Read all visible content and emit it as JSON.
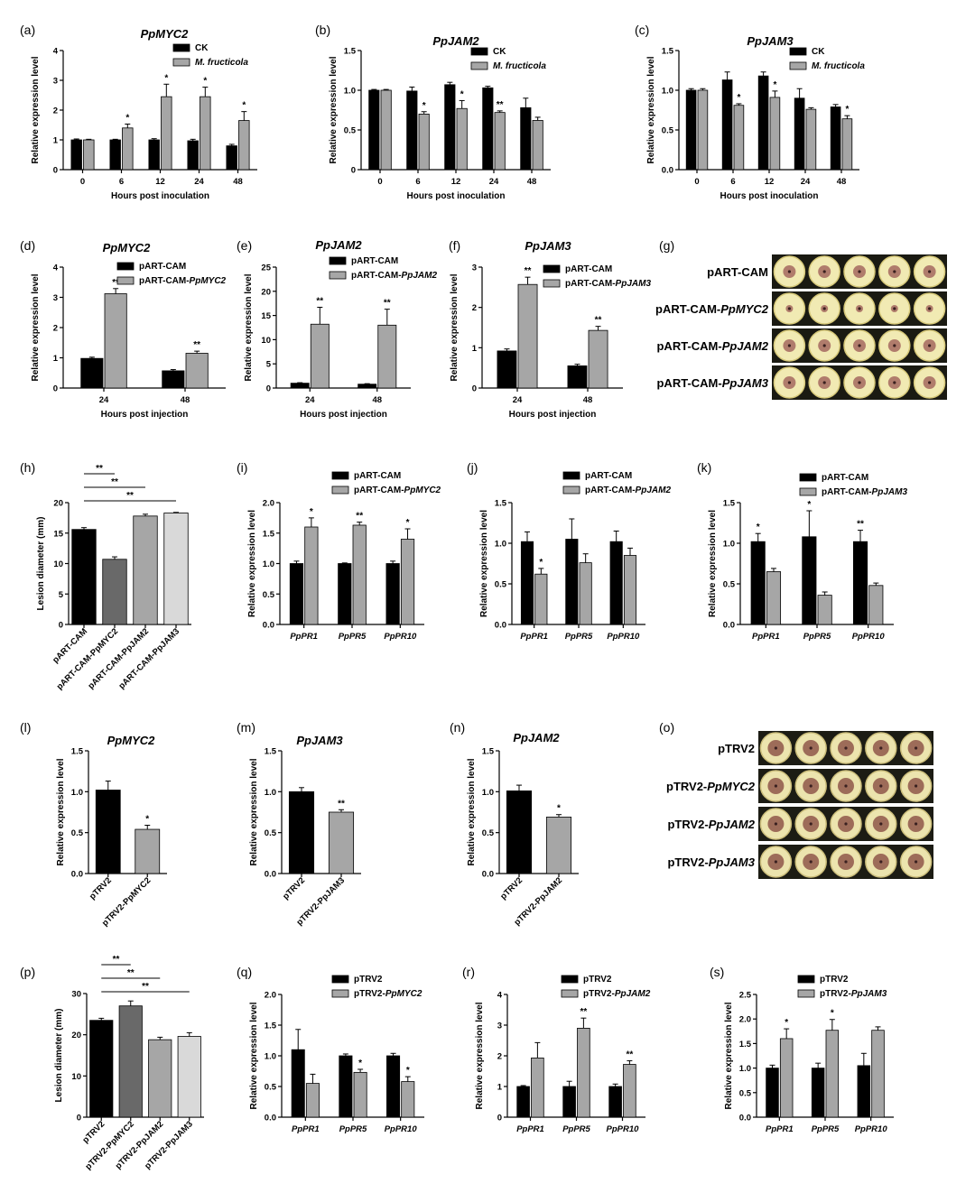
{
  "figure": {
    "panels": [
      {
        "id": "a",
        "label": "(a)",
        "title": "PpMYC2",
        "ylabel": "Relative expression level",
        "xlabel": "Hours post inoculation"
      },
      {
        "id": "b",
        "label": "(b)",
        "title": "PpJAM2",
        "ylabel": "Relative expression level",
        "xlabel": "Hours post inoculation"
      },
      {
        "id": "c",
        "label": "(c)",
        "title": "PpJAM3",
        "ylabel": "Relative expression level",
        "xlabel": "Hours post inoculation"
      },
      {
        "id": "d",
        "label": "(d)",
        "title": "PpMYC2",
        "ylabel": "Relative expression level",
        "xlabel": "Hours post injection"
      },
      {
        "id": "e",
        "label": "(e)",
        "title": "PpJAM2",
        "ylabel": "Relative expression level",
        "xlabel": "Hours post injection"
      },
      {
        "id": "f",
        "label": "(f)",
        "title": "PpJAM3",
        "ylabel": "Relative expression level",
        "xlabel": "Hours post injection"
      },
      {
        "id": "g",
        "label": "(g)",
        "title": "",
        "ylabel": "",
        "xlabel": ""
      },
      {
        "id": "h",
        "label": "(h)",
        "title": "",
        "ylabel": "Lesion diameter (mm)",
        "xlabel": ""
      },
      {
        "id": "i",
        "label": "(i)",
        "title": "",
        "ylabel": "Relative expression level",
        "xlabel": ""
      },
      {
        "id": "j",
        "label": "(j)",
        "title": "",
        "ylabel": "Relative expression level",
        "xlabel": ""
      },
      {
        "id": "k",
        "label": "(k)",
        "title": "",
        "ylabel": "Relative expression level",
        "xlabel": ""
      },
      {
        "id": "l",
        "label": "(l)",
        "title": "PpMYC2",
        "ylabel": "Relative expression level",
        "xlabel": ""
      },
      {
        "id": "m",
        "label": "(m)",
        "title": "PpJAM3",
        "ylabel": "Relative expression level",
        "xlabel": ""
      },
      {
        "id": "n",
        "label": "(n)",
        "title": "PpJAM2",
        "ylabel": "Relative expression level",
        "xlabel": ""
      },
      {
        "id": "o",
        "label": "(o)",
        "title": "",
        "ylabel": "",
        "xlabel": ""
      },
      {
        "id": "p",
        "label": "(p)",
        "title": "",
        "ylabel": "Lesion diameter (mm)",
        "xlabel": ""
      },
      {
        "id": "q",
        "label": "(q)",
        "title": "",
        "ylabel": "Relative expression level",
        "xlabel": ""
      },
      {
        "id": "r",
        "label": "(r)",
        "title": "",
        "ylabel": "Relative expression level",
        "xlabel": ""
      },
      {
        "id": "s",
        "label": "(s)",
        "title": "",
        "ylabel": "Relative expression level",
        "xlabel": ""
      }
    ],
    "photo_panels": [
      {
        "id": "g",
        "rows": [
          "pART-CAM",
          "pART-CAM-PpMYC2",
          "pART-CAM-PpJAM2",
          "pART-CAM-PpJAM3"
        ]
      },
      {
        "id": "o",
        "rows": [
          "pTRV2",
          "pTRV2-PpMYC2",
          "pTRV2-PpJAM2",
          "pTRV2-PpJAM3"
        ]
      }
    ]
  },
  "colors": {
    "black": "#000000",
    "gray": "#a6a6a6",
    "darkgray": "#696969",
    "lightgray": "#d9d9d9"
  },
  "chart_data": [
    {
      "id": "a",
      "type": "bar",
      "ylim": [
        0,
        4
      ],
      "yticks": [
        "0",
        "1",
        "2",
        "3",
        "4"
      ],
      "categories": [
        "0",
        "6",
        "12",
        "24",
        "48"
      ],
      "series": [
        {
          "name": "CK",
          "color": "black",
          "values": [
            1.0,
            1.0,
            1.0,
            0.97,
            0.8
          ],
          "errors": [
            0.03,
            0.02,
            0.04,
            0.05,
            0.05
          ],
          "sig": [
            "",
            "",
            "",
            "",
            ""
          ]
        },
        {
          "name": "M. fructicola",
          "color": "gray",
          "values": [
            1.0,
            1.4,
            2.45,
            2.45,
            1.65
          ],
          "errors": [
            0.02,
            0.13,
            0.42,
            0.32,
            0.3
          ],
          "sig": [
            "",
            "*",
            "*",
            "*",
            "*"
          ]
        }
      ]
    },
    {
      "id": "b",
      "type": "bar",
      "ylim": [
        0,
        1.5
      ],
      "yticks": [
        "0",
        "0.5",
        "1.0",
        "1.5"
      ],
      "categories": [
        "0",
        "6",
        "12",
        "24",
        "48"
      ],
      "series": [
        {
          "name": "CK",
          "color": "black",
          "values": [
            1.0,
            0.99,
            1.07,
            1.03,
            0.78
          ],
          "errors": [
            0.01,
            0.05,
            0.03,
            0.02,
            0.12
          ],
          "sig": [
            "",
            "",
            "",
            "",
            ""
          ]
        },
        {
          "name": "M. fructicola",
          "color": "gray",
          "values": [
            1.0,
            0.7,
            0.77,
            0.72,
            0.62
          ],
          "errors": [
            0.01,
            0.03,
            0.1,
            0.02,
            0.04
          ],
          "sig": [
            "",
            "*",
            "*",
            "**",
            ""
          ]
        }
      ]
    },
    {
      "id": "c",
      "type": "bar",
      "ylim": [
        0,
        1.5
      ],
      "yticks": [
        "0.0",
        "0.5",
        "1.0",
        "1.5"
      ],
      "categories": [
        "0",
        "6",
        "12",
        "24",
        "48"
      ],
      "series": [
        {
          "name": "CK",
          "color": "black",
          "values": [
            1.0,
            1.13,
            1.18,
            0.9,
            0.79
          ],
          "errors": [
            0.02,
            0.1,
            0.05,
            0.12,
            0.03
          ],
          "sig": [
            "",
            "",
            "",
            "",
            ""
          ]
        },
        {
          "name": "M. fructicola",
          "color": "gray",
          "values": [
            1.0,
            0.81,
            0.91,
            0.76,
            0.64
          ],
          "errors": [
            0.02,
            0.02,
            0.08,
            0.02,
            0.04
          ],
          "sig": [
            "",
            "*",
            "*",
            "",
            "*"
          ]
        }
      ]
    },
    {
      "id": "d",
      "type": "bar",
      "ylim": [
        0,
        4
      ],
      "yticks": [
        "0",
        "1",
        "2",
        "3",
        "4"
      ],
      "categories": [
        "24",
        "48"
      ],
      "series": [
        {
          "name": "pART-CAM",
          "color": "black",
          "values": [
            0.98,
            0.57
          ],
          "errors": [
            0.04,
            0.04
          ],
          "sig": [
            "",
            ""
          ]
        },
        {
          "name": "pART-CAM-PpMYC2",
          "color": "gray",
          "values": [
            3.12,
            1.15
          ],
          "errors": [
            0.17,
            0.07
          ],
          "sig": [
            "**",
            "**"
          ]
        }
      ]
    },
    {
      "id": "e",
      "type": "bar",
      "ylim": [
        0,
        25
      ],
      "yticks": [
        "0",
        "5",
        "10",
        "15",
        "20",
        "25"
      ],
      "categories": [
        "24",
        "48"
      ],
      "series": [
        {
          "name": "pART-CAM",
          "color": "black",
          "values": [
            1.0,
            0.8
          ],
          "errors": [
            0.1,
            0.1
          ],
          "sig": [
            "",
            ""
          ]
        },
        {
          "name": "pART-CAM-PpJAM2",
          "color": "gray",
          "values": [
            13.2,
            13.0
          ],
          "errors": [
            3.5,
            3.3
          ],
          "sig": [
            "**",
            "**"
          ]
        }
      ]
    },
    {
      "id": "f",
      "type": "bar",
      "ylim": [
        0,
        3
      ],
      "yticks": [
        "0",
        "1",
        "2",
        "3"
      ],
      "categories": [
        "24",
        "48"
      ],
      "series": [
        {
          "name": "pART-CAM",
          "color": "black",
          "values": [
            0.92,
            0.55
          ],
          "errors": [
            0.05,
            0.04
          ],
          "sig": [
            "",
            ""
          ]
        },
        {
          "name": "pART-CAM-PpJAM3",
          "color": "gray",
          "values": [
            2.57,
            1.43
          ],
          "errors": [
            0.18,
            0.1
          ],
          "sig": [
            "**",
            "**"
          ]
        }
      ]
    },
    {
      "id": "h",
      "type": "bar",
      "ylim": [
        0,
        20
      ],
      "yticks": [
        "0",
        "5",
        "10",
        "15",
        "20"
      ],
      "categories": [
        "pART-CAM",
        "pART-CAM-PpMYC2",
        "pART-CAM-PpJAM2",
        "pART-CAM-PpJAM3"
      ],
      "values": [
        15.6,
        10.7,
        17.8,
        18.3
      ],
      "errors": [
        0.3,
        0.4,
        0.3,
        0.1
      ],
      "colors": [
        "black",
        "darkgray",
        "gray",
        "lightgray"
      ],
      "brackets": [
        {
          "to": 1,
          "label": "**"
        },
        {
          "to": 2,
          "label": "**"
        },
        {
          "to": 3,
          "label": "**"
        }
      ]
    },
    {
      "id": "i",
      "type": "bar",
      "ylim": [
        0,
        2
      ],
      "yticks": [
        "0.0",
        "0.5",
        "1.0",
        "1.5",
        "2.0"
      ],
      "categories": [
        "PpPR1",
        "PpPR5",
        "PpPR10"
      ],
      "series": [
        {
          "name": "pART-CAM",
          "color": "black",
          "values": [
            1.0,
            1.0,
            1.0
          ],
          "errors": [
            0.04,
            0.01,
            0.04
          ],
          "sig": [
            "",
            "",
            ""
          ]
        },
        {
          "name": "pART-CAM-PpMYC2",
          "color": "gray",
          "values": [
            1.6,
            1.63,
            1.4
          ],
          "errors": [
            0.15,
            0.05,
            0.17
          ],
          "sig": [
            "*",
            "**",
            "*"
          ]
        }
      ]
    },
    {
      "id": "j",
      "type": "bar",
      "ylim": [
        0,
        1.5
      ],
      "yticks": [
        "0.0",
        "0.5",
        "1.0",
        "1.5"
      ],
      "categories": [
        "PpPR1",
        "PpPR5",
        "PpPR10"
      ],
      "series": [
        {
          "name": "pART-CAM",
          "color": "black",
          "values": [
            1.02,
            1.05,
            1.02
          ],
          "errors": [
            0.12,
            0.25,
            0.13
          ],
          "sig": [
            "",
            "",
            ""
          ]
        },
        {
          "name": "pART-CAM-PpJAM2",
          "color": "gray",
          "values": [
            0.62,
            0.76,
            0.85
          ],
          "errors": [
            0.07,
            0.11,
            0.09
          ],
          "sig": [
            "*",
            "",
            ""
          ]
        }
      ]
    },
    {
      "id": "k",
      "type": "bar",
      "ylim": [
        0,
        1.5
      ],
      "yticks": [
        "0.0",
        "0.5",
        "1.0",
        "1.5"
      ],
      "categories": [
        "PpPR1",
        "PpPR5",
        "PpPR10"
      ],
      "series": [
        {
          "name": "pART-CAM",
          "color": "black",
          "values": [
            1.02,
            1.08,
            1.02
          ],
          "errors": [
            0.1,
            0.32,
            0.14
          ],
          "sig": [
            "*",
            "*",
            "**"
          ]
        },
        {
          "name": "pART-CAM-PpJAM3",
          "color": "gray",
          "values": [
            0.65,
            0.36,
            0.48
          ],
          "errors": [
            0.04,
            0.04,
            0.03
          ],
          "sig": [
            "",
            "",
            ""
          ]
        }
      ]
    },
    {
      "id": "l",
      "type": "bar",
      "ylim": [
        0,
        1.5
      ],
      "yticks": [
        "0.0",
        "0.5",
        "1.0",
        "1.5"
      ],
      "categories": [
        "pTRV2",
        "pTRV2-PpMYC2"
      ],
      "values": [
        1.02,
        0.54
      ],
      "errors": [
        0.11,
        0.05
      ],
      "colors": [
        "black",
        "gray"
      ],
      "sig": [
        "",
        "*"
      ]
    },
    {
      "id": "m",
      "type": "bar",
      "ylim": [
        0,
        1.5
      ],
      "yticks": [
        "0.0",
        "0.5",
        "1.0",
        "1.5"
      ],
      "categories": [
        "pTRV2",
        "pTRV2-PpJAM3"
      ],
      "values": [
        1.0,
        0.75
      ],
      "errors": [
        0.05,
        0.03
      ],
      "colors": [
        "black",
        "gray"
      ],
      "sig": [
        "",
        "**"
      ]
    },
    {
      "id": "n",
      "type": "bar",
      "ylim": [
        0,
        1.5
      ],
      "yticks": [
        "0.0",
        "0.5",
        "1.0",
        "1.5"
      ],
      "categories": [
        "pTRV2",
        "pTRV2-PpJAM2"
      ],
      "values": [
        1.01,
        0.69
      ],
      "errors": [
        0.07,
        0.03
      ],
      "colors": [
        "black",
        "gray"
      ],
      "sig": [
        "",
        "*"
      ]
    },
    {
      "id": "p",
      "type": "bar",
      "ylim": [
        0,
        30
      ],
      "yticks": [
        "0",
        "10",
        "20",
        "30"
      ],
      "categories": [
        "pTRV2",
        "pTRV2-PpMYC2",
        "pTRV2-PpJAM2",
        "pTRV2-PpJAM3"
      ],
      "values": [
        23.5,
        27.0,
        18.8,
        19.6
      ],
      "errors": [
        0.5,
        1.2,
        0.6,
        0.9
      ],
      "colors": [
        "black",
        "darkgray",
        "gray",
        "lightgray"
      ],
      "brackets": [
        {
          "to": 1,
          "label": "**"
        },
        {
          "to": 2,
          "label": "**"
        },
        {
          "to": 3,
          "label": "**"
        }
      ]
    },
    {
      "id": "q",
      "type": "bar",
      "ylim": [
        0,
        2
      ],
      "yticks": [
        "0.0",
        "0.5",
        "1.0",
        "1.5",
        "2.0"
      ],
      "categories": [
        "PpPR1",
        "PpPR5",
        "PpPR10"
      ],
      "series": [
        {
          "name": "pTRV2",
          "color": "black",
          "values": [
            1.1,
            1.0,
            1.0
          ],
          "errors": [
            0.33,
            0.03,
            0.04
          ],
          "sig": [
            "",
            "",
            ""
          ]
        },
        {
          "name": "pTRV2-PpMYC2",
          "color": "gray",
          "values": [
            0.55,
            0.73,
            0.58
          ],
          "errors": [
            0.15,
            0.05,
            0.08
          ],
          "sig": [
            "",
            "*",
            "*"
          ]
        }
      ]
    },
    {
      "id": "r",
      "type": "bar",
      "ylim": [
        0,
        4
      ],
      "yticks": [
        "0",
        "1",
        "2",
        "3",
        "4"
      ],
      "categories": [
        "PpPR1",
        "PpPR5",
        "PpPR10"
      ],
      "series": [
        {
          "name": "pTRV2",
          "color": "black",
          "values": [
            1.0,
            1.0,
            1.0
          ],
          "errors": [
            0.03,
            0.17,
            0.08
          ],
          "sig": [
            "",
            "",
            ""
          ]
        },
        {
          "name": "pTRV2-PpJAM2",
          "color": "gray",
          "values": [
            1.93,
            2.9,
            1.72
          ],
          "errors": [
            0.5,
            0.33,
            0.12
          ],
          "sig": [
            "",
            "**",
            "**"
          ]
        }
      ]
    },
    {
      "id": "s",
      "type": "bar",
      "ylim": [
        0,
        2.5
      ],
      "yticks": [
        "0.0",
        "0.5",
        "1.0",
        "1.5",
        "2.0",
        "2.5"
      ],
      "categories": [
        "PpPR1",
        "PpPR5",
        "PpPR10"
      ],
      "series": [
        {
          "name": "pTRV2",
          "color": "black",
          "values": [
            1.0,
            1.0,
            1.05
          ],
          "errors": [
            0.06,
            0.1,
            0.25
          ],
          "sig": [
            "",
            "",
            ""
          ]
        },
        {
          "name": "pTRV2-PpJAM3",
          "color": "gray",
          "values": [
            1.6,
            1.77,
            1.77
          ],
          "errors": [
            0.2,
            0.22,
            0.07
          ],
          "sig": [
            "*",
            "*",
            ""
          ]
        }
      ]
    }
  ]
}
